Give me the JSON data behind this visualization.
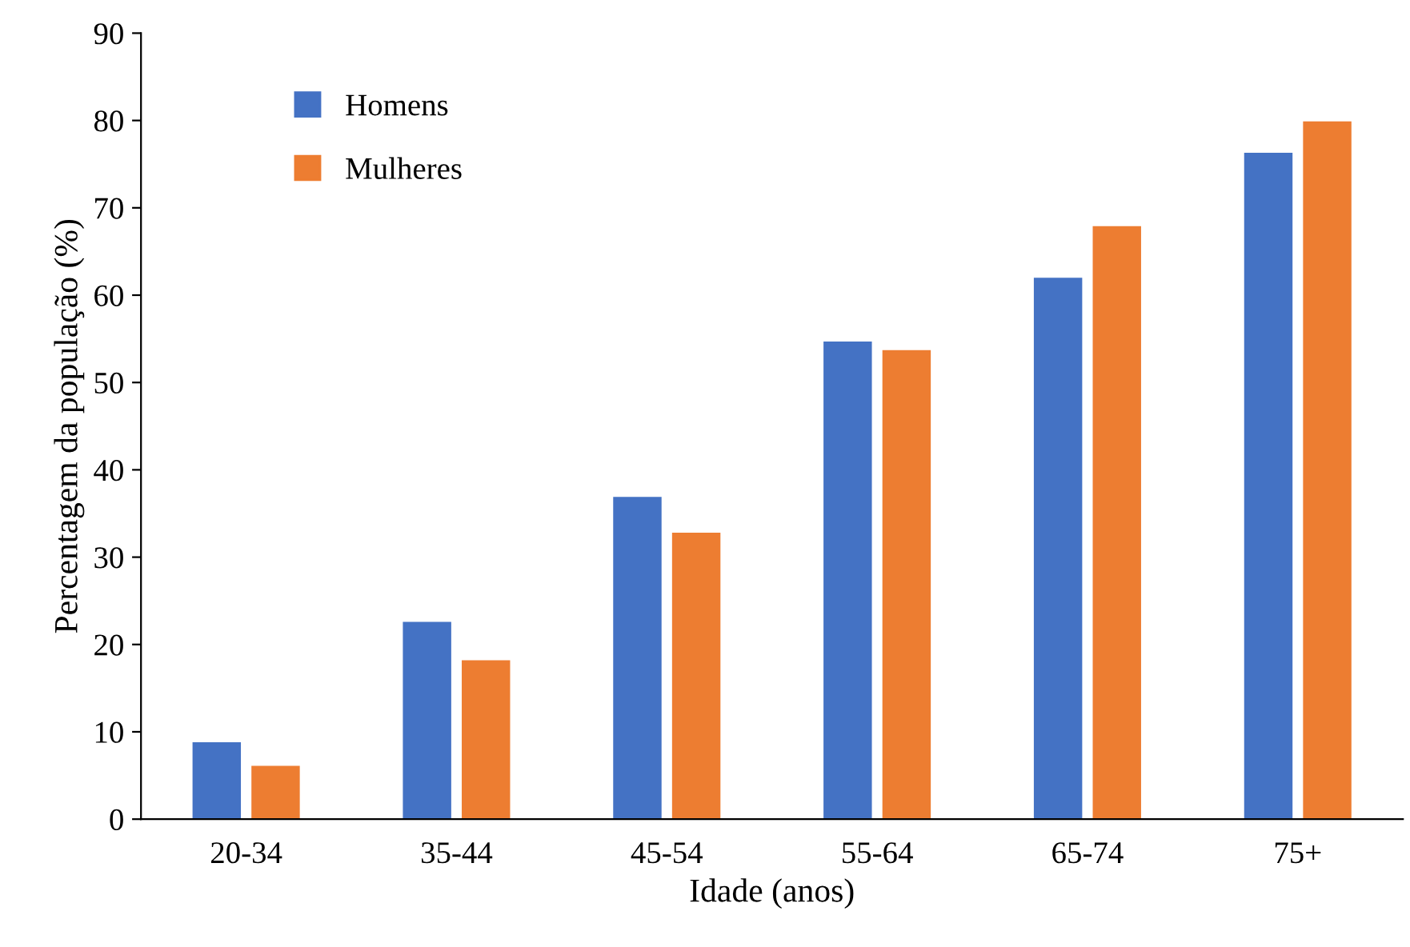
{
  "chart_data": {
    "type": "bar",
    "xlabel": "Idade (anos)",
    "ylabel": "Percentagem da população (%)",
    "categories": [
      "20-34",
      "35-44",
      "45-54",
      "55-64",
      "65-74",
      "75+"
    ],
    "series": [
      {
        "name": "Homens",
        "color": "#4472c4",
        "values": [
          8.8,
          22.6,
          36.9,
          54.7,
          62.0,
          76.3
        ]
      },
      {
        "name": "Mulheres",
        "color": "#ed7d31",
        "values": [
          6.1,
          18.2,
          32.8,
          53.7,
          67.9,
          79.9
        ]
      }
    ],
    "ylim": [
      0,
      90
    ],
    "yticks": [
      0,
      10,
      20,
      30,
      40,
      50,
      60,
      70,
      80,
      90
    ],
    "grid": false,
    "legend": "top left"
  }
}
